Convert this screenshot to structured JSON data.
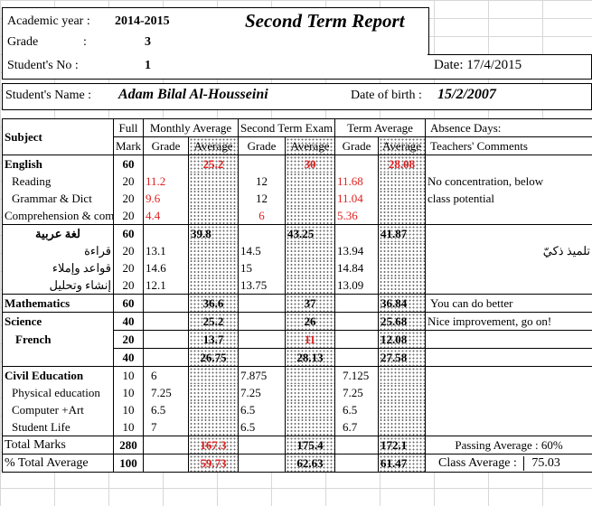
{
  "header": {
    "academic_year_label": "Academic year :",
    "academic_year": "2014-2015",
    "title": "Second Term Report",
    "grade_label": "Grade",
    "grade_colon": ":",
    "grade": "3",
    "student_no_label": "Student's No :",
    "student_no": "1",
    "date_label": "Date: 17/4/2015",
    "student_name_label": "Student's Name :",
    "student_name": "Adam Bilal Al-Housseini",
    "dob_label": "Date of birth :",
    "dob": "15/2/2007"
  },
  "columns": {
    "subject": "Subject",
    "full_mark_1": "Full",
    "full_mark_2": "Mark",
    "monthly": "Monthly Average",
    "second_term": "Second Term Exam",
    "term": "Term Average",
    "grade": "Grade",
    "average": "Average",
    "absence": "Absence Days:",
    "comments": "Teachers' Comments"
  },
  "rows": {
    "english": {
      "name": "English",
      "full": "60",
      "m_avg": "25.2",
      "s_avg": "30",
      "t_avg": "28.08"
    },
    "reading": {
      "name": "Reading",
      "full": "20",
      "m_grade": "11.2",
      "s_grade": "12",
      "t_grade": "11.68"
    },
    "grammar": {
      "name": "Grammar & Dict",
      "full": "20",
      "m_grade": "9.6",
      "s_grade": "12",
      "t_grade": "11.04"
    },
    "comprehension": {
      "name": "Comprehension & comp",
      "full": "20",
      "m_grade": "4.4",
      "s_grade": "6",
      "t_grade": "5.36"
    },
    "english_comment_1": "No concentration, below",
    "english_comment_2": "class potential",
    "arabic": {
      "name": "لغة عربية",
      "full": "60",
      "m_avg": "39.8",
      "s_avg": "43.25",
      "t_avg": "41.87"
    },
    "reading_ar": {
      "name": "قراءة",
      "full": "20",
      "m_grade": "13.1",
      "s_grade": "14.5",
      "t_grade": "13.94"
    },
    "rules_ar": {
      "name": "قواعد وإملاء",
      "full": "20",
      "m_grade": "14.6",
      "s_grade": "15",
      "t_grade": "14.84"
    },
    "essay_ar": {
      "name": "إنشاء وتحليل",
      "full": "20",
      "m_grade": "12.1",
      "s_grade": "13.75",
      "t_grade": "13.09"
    },
    "arabic_comment": "تلميذ ذكيّ",
    "math": {
      "name": "Mathematics",
      "full": "60",
      "m_avg": "36.6",
      "s_avg": "37",
      "t_avg": "36.84",
      "comment": "You can do better"
    },
    "science": {
      "name": "Science",
      "full": "40",
      "m_avg": "25.2",
      "s_avg": "26",
      "t_avg": "25.68",
      "comment": "Nice improvement, go on!"
    },
    "french": {
      "name": "French",
      "full": "20",
      "m_avg": "13.7",
      "s_avg": "11",
      "t_avg": "12.08"
    },
    "sci_fr": {
      "full": "40",
      "m_avg": "26.75",
      "s_avg": "28.13",
      "t_avg": "27.58"
    },
    "civil": {
      "name": "Civil Education",
      "full": "10",
      "m_grade": "6",
      "s_grade": "7.875",
      "t_grade": "7.125"
    },
    "physical": {
      "name": "Physical education",
      "full": "10",
      "m_grade": "7.25",
      "s_grade": "7.25",
      "t_grade": "7.25"
    },
    "computer": {
      "name": "Computer +Art",
      "full": "10",
      "m_grade": "6.5",
      "s_grade": "6.5",
      "t_grade": "6.5"
    },
    "life": {
      "name": "Student Life",
      "full": "10",
      "m_grade": "7",
      "s_grade": "6.5",
      "t_grade": "6.7"
    },
    "total": {
      "name": "Total Marks",
      "full": "280",
      "m_avg": "167.3",
      "s_avg": "175.4",
      "t_avg": "172.1",
      "passing": "Passing Average : 60%"
    },
    "percent": {
      "name": "% Total Average",
      "full": "100",
      "m_avg": "59.73",
      "s_avg": "62.63",
      "t_avg": "61.47",
      "class_label": "Class Average :",
      "class_avg": "75.03"
    }
  }
}
